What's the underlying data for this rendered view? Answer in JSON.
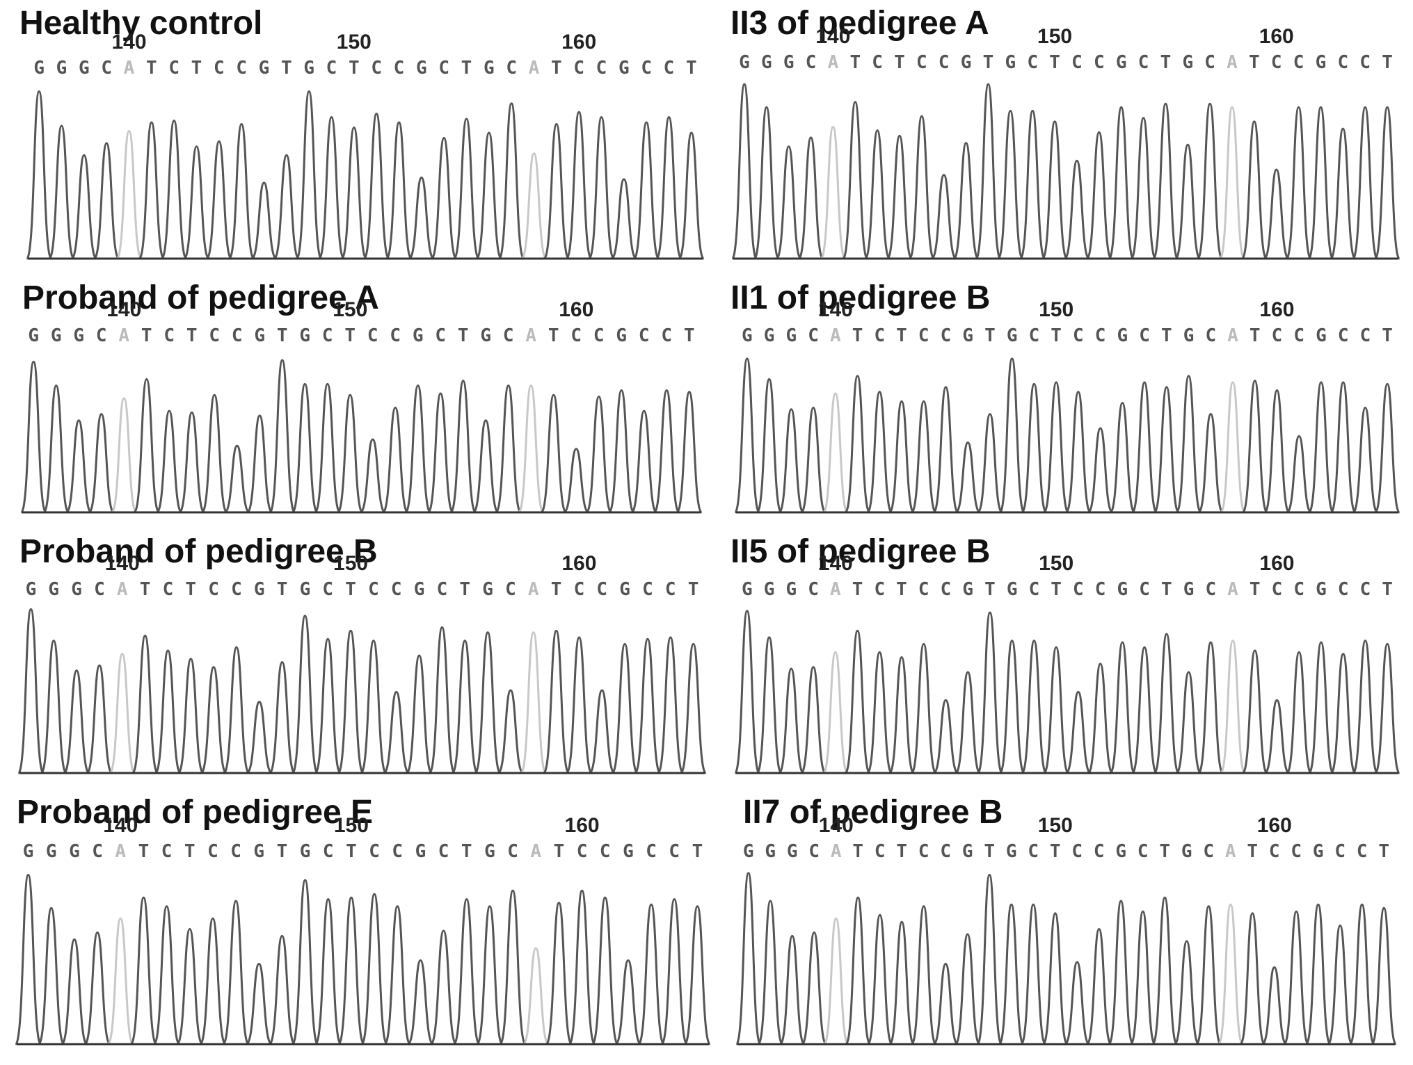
{
  "sequence": [
    "G",
    "G",
    "G",
    "C",
    "A",
    "T",
    "C",
    "T",
    "C",
    "C",
    "G",
    "T",
    "G",
    "C",
    "T",
    "C",
    "C",
    "G",
    "C",
    "T",
    "G",
    "C",
    "A",
    "T",
    "C",
    "C",
    "G",
    "C",
    "C",
    "T"
  ],
  "faint_positions": [
    4,
    22
  ],
  "colors": {
    "trace": "#555555",
    "faint_trace": "#c8c8c8",
    "baseline": "#333333",
    "base_text": "#555555",
    "faint_text": "#bbbbbb"
  },
  "panels": [
    {
      "title": "Healthy control",
      "position_labels": [
        "140",
        "150",
        "160"
      ],
      "peaks": [
        0.97,
        0.77,
        0.6,
        0.67,
        0.74,
        0.79,
        0.8,
        0.65,
        0.68,
        0.78,
        0.44,
        0.6,
        0.97,
        0.82,
        0.76,
        0.84,
        0.79,
        0.47,
        0.7,
        0.81,
        0.73,
        0.9,
        0.61,
        0.78,
        0.85,
        0.82,
        0.46,
        0.79,
        0.82,
        0.73
      ]
    },
    {
      "title": "II3 of pedigree A",
      "position_labels": [
        "140",
        "150",
        "160"
      ],
      "peaks": [
        0.98,
        0.85,
        0.63,
        0.68,
        0.74,
        0.88,
        0.72,
        0.69,
        0.8,
        0.47,
        0.65,
        0.98,
        0.83,
        0.83,
        0.77,
        0.55,
        0.71,
        0.85,
        0.79,
        0.87,
        0.64,
        0.87,
        0.85,
        0.77,
        0.5,
        0.85,
        0.85,
        0.73,
        0.85,
        0.85
      ]
    },
    {
      "title": "Proband of pedigree A",
      "position_labels": [
        "140",
        "150",
        "160"
      ],
      "peaks": [
        0.95,
        0.8,
        0.58,
        0.62,
        0.72,
        0.84,
        0.64,
        0.63,
        0.74,
        0.42,
        0.61,
        0.96,
        0.81,
        0.81,
        0.74,
        0.46,
        0.66,
        0.8,
        0.75,
        0.83,
        0.58,
        0.8,
        0.8,
        0.74,
        0.4,
        0.73,
        0.77,
        0.64,
        0.77,
        0.76
      ]
    },
    {
      "title": "II1 of pedigree B",
      "position_labels": [
        "140",
        "150",
        "160"
      ],
      "peaks": [
        0.97,
        0.84,
        0.65,
        0.66,
        0.75,
        0.86,
        0.76,
        0.7,
        0.7,
        0.79,
        0.44,
        0.62,
        0.97,
        0.81,
        0.82,
        0.76,
        0.53,
        0.69,
        0.82,
        0.79,
        0.86,
        0.62,
        0.82,
        0.83,
        0.77,
        0.48,
        0.82,
        0.82,
        0.66,
        0.81
      ]
    },
    {
      "title": "Proband of pedigree B",
      "position_labels": [
        "140",
        "150",
        "160"
      ],
      "peaks": [
        0.99,
        0.8,
        0.62,
        0.65,
        0.72,
        0.83,
        0.74,
        0.69,
        0.64,
        0.76,
        0.43,
        0.67,
        0.95,
        0.81,
        0.86,
        0.8,
        0.49,
        0.71,
        0.88,
        0.8,
        0.85,
        0.5,
        0.85,
        0.86,
        0.82,
        0.5,
        0.78,
        0.81,
        0.82,
        0.78
      ]
    },
    {
      "title": "II5 of pedigree B",
      "position_labels": [
        "140",
        "150",
        "160"
      ],
      "peaks": [
        0.98,
        0.82,
        0.63,
        0.64,
        0.73,
        0.86,
        0.73,
        0.7,
        0.78,
        0.44,
        0.61,
        0.97,
        0.8,
        0.8,
        0.76,
        0.49,
        0.66,
        0.79,
        0.76,
        0.84,
        0.61,
        0.79,
        0.8,
        0.74,
        0.44,
        0.73,
        0.79,
        0.72,
        0.8,
        0.78
      ]
    },
    {
      "title": "Proband of pedigree E",
      "position_labels": [
        "140",
        "150",
        "160"
      ],
      "peaks": [
        0.97,
        0.78,
        0.6,
        0.64,
        0.72,
        0.84,
        0.79,
        0.66,
        0.72,
        0.82,
        0.46,
        0.62,
        0.94,
        0.83,
        0.84,
        0.86,
        0.79,
        0.48,
        0.65,
        0.83,
        0.79,
        0.88,
        0.55,
        0.81,
        0.88,
        0.84,
        0.48,
        0.8,
        0.83,
        0.79
      ]
    },
    {
      "title": "II7 of pedigree B",
      "position_labels": [
        "140",
        "150",
        "160"
      ],
      "peaks": [
        0.98,
        0.82,
        0.62,
        0.64,
        0.72,
        0.84,
        0.74,
        0.7,
        0.79,
        0.46,
        0.63,
        0.97,
        0.8,
        0.8,
        0.75,
        0.47,
        0.66,
        0.82,
        0.76,
        0.84,
        0.59,
        0.79,
        0.8,
        0.75,
        0.44,
        0.76,
        0.8,
        0.68,
        0.8,
        0.78
      ]
    }
  ]
}
